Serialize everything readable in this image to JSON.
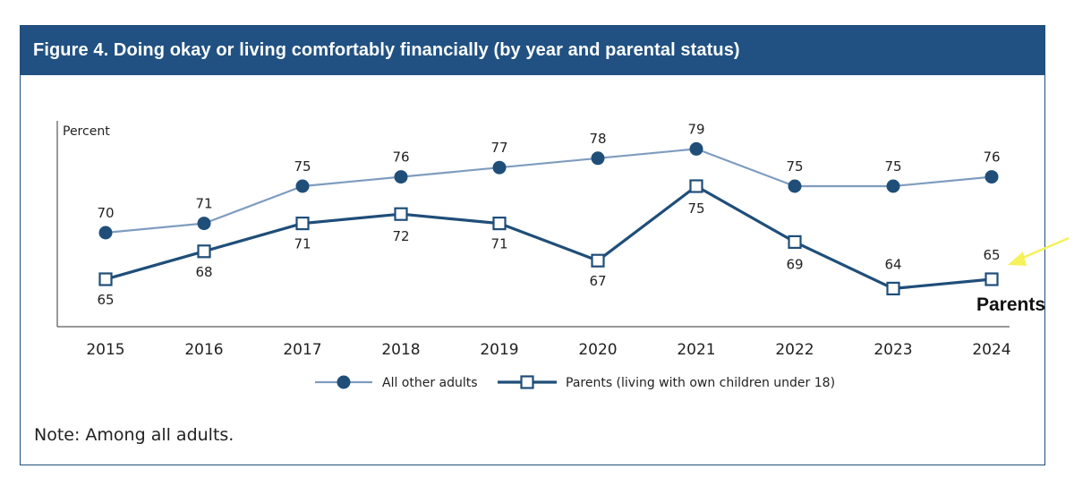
{
  "figure": {
    "title": "Figure 4. Doing okay or living comfortably financially (by year and parental status)",
    "note": "Note: Among all adults."
  },
  "chart_data": {
    "type": "line",
    "title": "Figure 4. Doing okay or living comfortably financially (by year and parental status)",
    "ylabel": "Percent",
    "xlabel": "",
    "x": [
      "2015",
      "2016",
      "2017",
      "2018",
      "2019",
      "2020",
      "2021",
      "2022",
      "2023",
      "2024"
    ],
    "ylim": [
      60,
      82
    ],
    "grid": false,
    "legend_position": "bottom",
    "series": [
      {
        "name": "All other adults",
        "values": [
          70,
          71,
          75,
          76,
          77,
          78,
          79,
          75,
          75,
          76
        ],
        "color": "#7f9cbf",
        "marker": "filled-circle",
        "marker_color": "#1f4e79"
      },
      {
        "name": "Parents (living with own children under 18)",
        "values": [
          65,
          68,
          71,
          72,
          71,
          67,
          75,
          69,
          64,
          65
        ],
        "color": "#1f4e79",
        "marker": "open-square"
      }
    ],
    "annotations": [
      {
        "text": "Parents",
        "color": "#111111",
        "arrow_color": "#f5f25a"
      }
    ]
  }
}
